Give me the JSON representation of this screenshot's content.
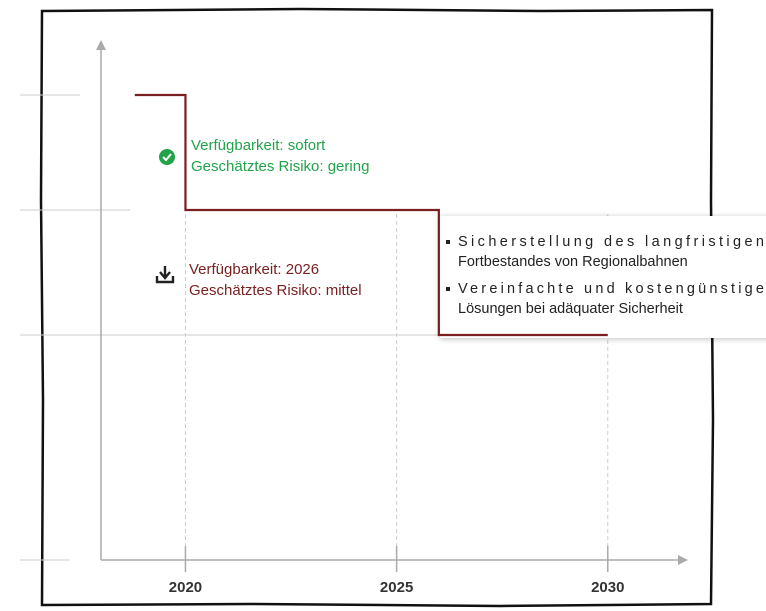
{
  "chart_data": {
    "type": "line",
    "x": [
      2018.8,
      2020,
      2020,
      2026,
      2026,
      2030
    ],
    "series": [
      {
        "color": "#7a1f1f",
        "values": [
          9.3,
          9.3,
          7,
          7,
          4.5,
          4.5
        ]
      }
    ],
    "xlim": [
      2018,
      2031.9
    ],
    "xticks": [
      2020,
      2025,
      2030
    ],
    "ylim": [
      0,
      10.4
    ],
    "annotations": [
      {
        "icon": "check",
        "color": "#22a34a",
        "lines": [
          "Verfügbarkeit: sofort",
          "Geschätztes Risiko: gering"
        ]
      },
      {
        "icon": "download",
        "color": "#7a1f1f",
        "lines": [
          "Verfügbarkeit: 2026",
          "Geschätztes Risiko: mittel"
        ]
      }
    ],
    "bullets": [
      [
        "Sicherstellung des langfristigen",
        "Fortbestandes von Regionalbahnen"
      ],
      [
        "Vereinfachte und kostengünstige",
        "Lösungen bei adäquater Sicherheit"
      ]
    ]
  }
}
